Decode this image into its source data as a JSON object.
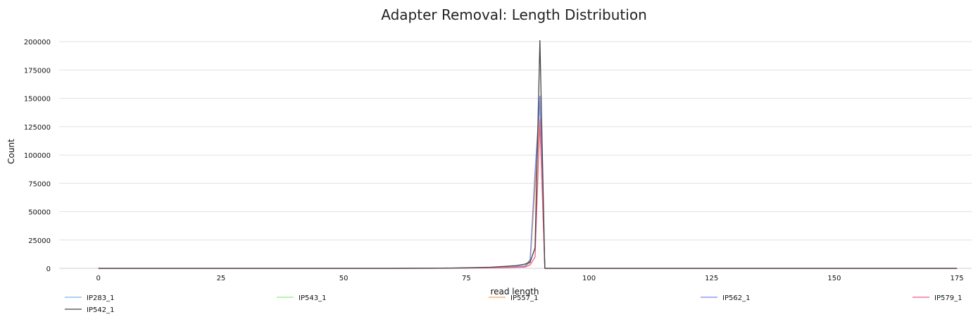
{
  "chart_data": {
    "type": "line",
    "title": "Adapter Removal: Length Distribution",
    "xlabel": "read length",
    "ylabel": "Count",
    "xlim": [
      -8,
      178
    ],
    "ylim": [
      0,
      215000
    ],
    "xticks": [
      0,
      25,
      50,
      75,
      100,
      125,
      150,
      175
    ],
    "yticks": [
      0,
      25000,
      50000,
      75000,
      100000,
      125000,
      150000,
      175000,
      200000
    ],
    "grid": "horizontal",
    "legend_position": "bottom",
    "series": [
      {
        "name": "IP283_1",
        "color": "#7cb5ec",
        "x": [
          0,
          60,
          70,
          75,
          80,
          84,
          86,
          87,
          88,
          89,
          90,
          91,
          175
        ],
        "y": [
          0,
          0,
          100,
          300,
          700,
          1200,
          1700,
          2200,
          8000,
          80000,
          145000,
          0,
          0
        ]
      },
      {
        "name": "IP542_1",
        "color": "#434348",
        "x": [
          0,
          60,
          70,
          75,
          80,
          83,
          85,
          86,
          87,
          88,
          89,
          90,
          91,
          175
        ],
        "y": [
          0,
          0,
          200,
          500,
          1000,
          1800,
          2400,
          3000,
          3800,
          5500,
          18000,
          201000,
          0,
          0
        ]
      },
      {
        "name": "IP543_1",
        "color": "#90ed7d",
        "x": [
          0,
          60,
          70,
          75,
          80,
          84,
          86,
          87,
          88,
          89,
          90,
          91,
          175
        ],
        "y": [
          0,
          0,
          100,
          300,
          600,
          1000,
          1400,
          1800,
          5000,
          70000,
          130000,
          0,
          0
        ]
      },
      {
        "name": "IP557_1",
        "color": "#f7a35c",
        "x": [
          0,
          60,
          70,
          75,
          80,
          84,
          86,
          87,
          88,
          89,
          90,
          91,
          175
        ],
        "y": [
          0,
          0,
          100,
          300,
          600,
          1000,
          1400,
          1800,
          5000,
          72000,
          132000,
          0,
          0
        ]
      },
      {
        "name": "IP562_1",
        "color": "#8085e9",
        "x": [
          0,
          60,
          70,
          75,
          80,
          84,
          86,
          87,
          88,
          89,
          90,
          91,
          175
        ],
        "y": [
          0,
          0,
          100,
          300,
          700,
          1200,
          1700,
          2200,
          7000,
          85000,
          152000,
          0,
          0
        ]
      },
      {
        "name": "IP579_1",
        "color": "#f15c80",
        "x": [
          0,
          60,
          70,
          75,
          80,
          84,
          86,
          87,
          88,
          89,
          90,
          91,
          175
        ],
        "y": [
          0,
          0,
          100,
          300,
          500,
          800,
          1000,
          1200,
          3000,
          10000,
          130000,
          0,
          0
        ]
      }
    ]
  }
}
